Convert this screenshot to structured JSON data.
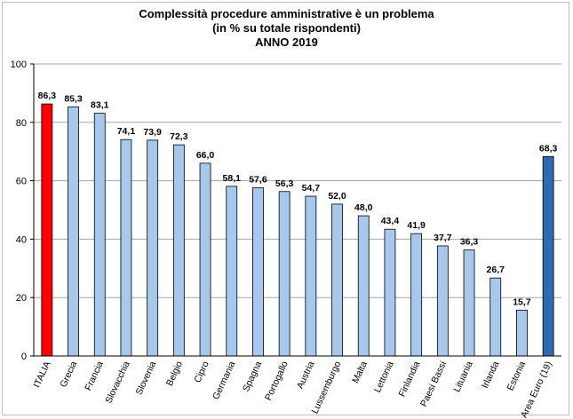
{
  "chart_data": {
    "type": "bar",
    "title": [
      "Complessità procedure amministrative è un problema",
      "(in % su totale rispondenti)",
      "ANNO 2019"
    ],
    "categories": [
      "ITALIA",
      "Grecia",
      "Francia",
      "Slovacchia",
      "Slovenia",
      "Belgio",
      "Cipro",
      "Germania",
      "Spagna",
      "Portogallo",
      "Austria",
      "Lussemburgo",
      "Malta",
      "Lettonia",
      "Finlandia",
      "Paesi Bassi",
      "Lituania",
      "Irlanda",
      "Estonia",
      "Area Euro (19)"
    ],
    "values": [
      86.3,
      85.3,
      83.1,
      74.1,
      73.9,
      72.3,
      66.0,
      58.1,
      57.6,
      56.3,
      54.7,
      52.0,
      48.0,
      43.4,
      41.9,
      37.7,
      36.3,
      26.7,
      15.7,
      68.3
    ],
    "value_labels": [
      "86,3",
      "85,3",
      "83,1",
      "74,1",
      "73,9",
      "72,3",
      "66,0",
      "58,1",
      "57,6",
      "56,3",
      "54,7",
      "52,0",
      "48,0",
      "43,4",
      "41,9",
      "37,7",
      "36,3",
      "26,7",
      "15,7",
      "68,3"
    ],
    "ylim": [
      0,
      100
    ],
    "yticks": [
      0,
      20,
      40,
      60,
      80,
      100
    ],
    "grid": true,
    "colors": {
      "default": "#a6c8ec",
      "highlight_first": "#ff0000",
      "highlight_last": "#2e6ab1",
      "stroke": "#000000",
      "grid": "#a6a6a6"
    }
  }
}
